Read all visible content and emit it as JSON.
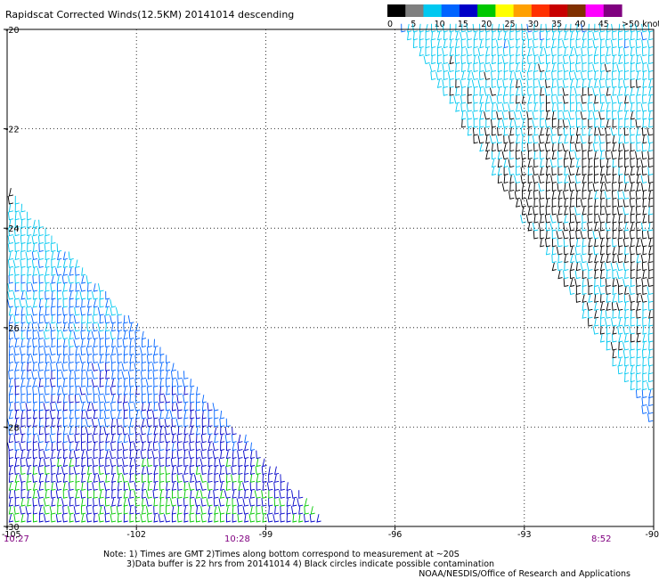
{
  "title": "Rapidscat Corrected Winds(12.5KM) 20141014 descending",
  "legend": {
    "labels": [
      "0",
      "5",
      "10",
      "15",
      "20",
      "25",
      "30",
      "35",
      "40",
      "45",
      ">50 knots"
    ],
    "colors": [
      "#000000",
      "#7f7f7f",
      "#00c8f0",
      "#0064ff",
      "#0000c8",
      "#00c800",
      "#ffff00",
      "#ffa000",
      "#ff3000",
      "#c80000",
      "#803000",
      "#ff00ff",
      "#800080"
    ]
  },
  "times": {
    "left": "10:27",
    "middle": "10:28",
    "right": "8:52",
    "color": "#800080"
  },
  "notes": [
    "Note: 1) Times are GMT 2)Times along bottom correspond to measurement at ~20S",
    "3)Data buffer is 22 hrs from 20141014 4) Black circles indicate possible contamination",
    "NOAA/NESDIS/Office of Research and Applications"
  ],
  "chart_data": {
    "type": "wind_barb_map",
    "xlim": [
      -105,
      -90
    ],
    "ylim": [
      -30,
      -20
    ],
    "x_ticks": [
      -105,
      -102,
      -99,
      -96,
      -93,
      -90
    ],
    "x_tick_labels": [
      "-105",
      "-102",
      "-99",
      "-96",
      "-93",
      "-90"
    ],
    "y_ticks": [
      -20,
      -22,
      -24,
      -26,
      -28,
      -30
    ],
    "y_tick_labels": [
      "-20",
      "-22",
      "-24",
      "-26",
      "-28",
      "-30"
    ],
    "grid": "dotted",
    "swaths": [
      {
        "name": "western",
        "polygon": [
          [
            -105,
            -23.3
          ],
          [
            -97.6,
            -30
          ],
          [
            -105,
            -30
          ]
        ],
        "wind_knots": [
          [
            -30,
            20
          ],
          [
            -29,
            19
          ],
          [
            -28,
            15
          ],
          [
            -27,
            13
          ],
          [
            -26,
            11
          ],
          [
            -25,
            9
          ],
          [
            -24,
            7
          ],
          [
            -23.3,
            5
          ]
        ]
      },
      {
        "name": "eastern",
        "polygon": [
          [
            -95.9,
            -20
          ],
          [
            -90,
            -20
          ],
          [
            -90,
            -28.1
          ]
        ],
        "wind_knots": [
          [
            -20,
            8
          ],
          [
            -21,
            7
          ],
          [
            -22,
            6
          ],
          [
            -22.5,
            4
          ],
          [
            -23.5,
            3
          ],
          [
            -25,
            5
          ],
          [
            -26,
            6
          ],
          [
            -27,
            8
          ],
          [
            -28,
            14
          ]
        ]
      }
    ]
  }
}
